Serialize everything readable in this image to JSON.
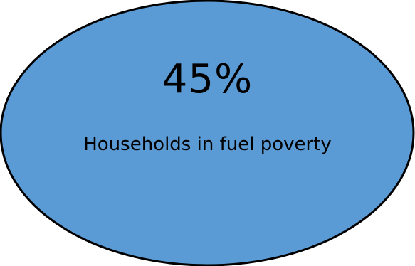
{
  "stat": {
    "value": "45%",
    "label": "Households in fuel poverty"
  },
  "colors": {
    "fill": "#5b9bd5",
    "stroke": "#000000"
  }
}
